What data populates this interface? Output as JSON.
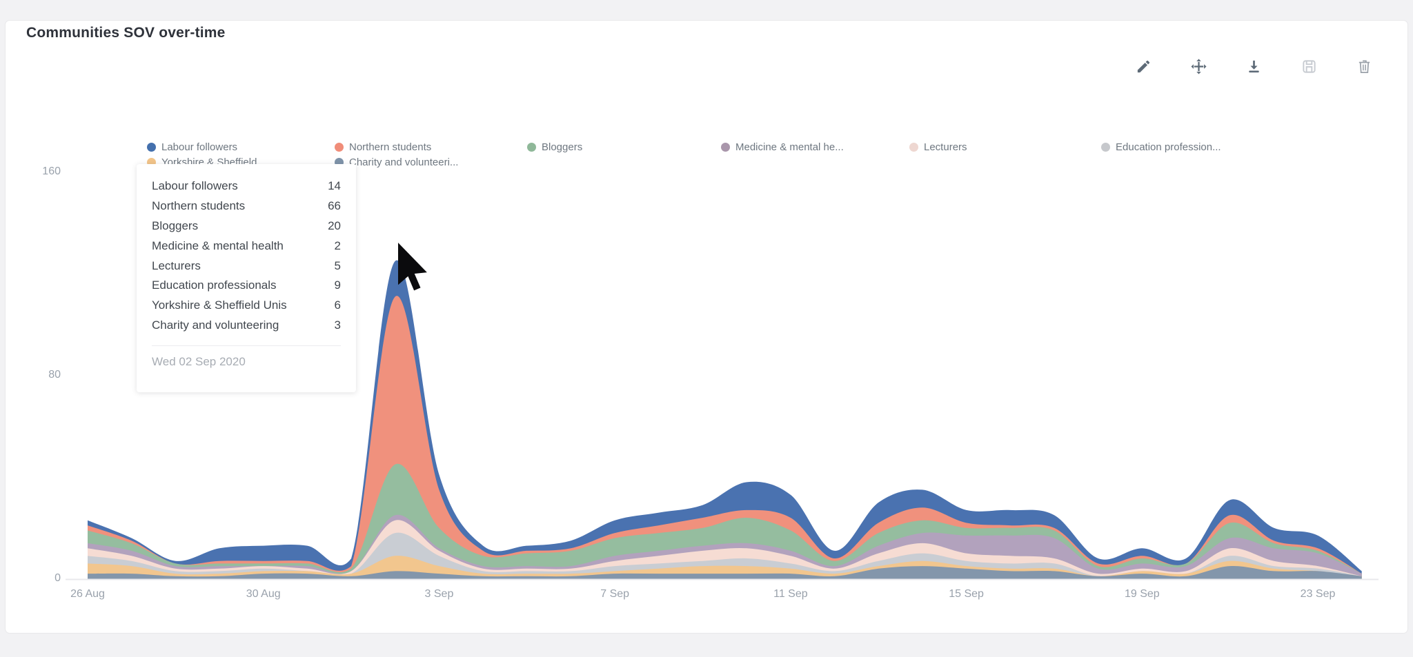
{
  "card": {
    "title": "Communities SOV over-time"
  },
  "toolbar": {
    "buttons": [
      {
        "id": "edit",
        "icon": "pencil-icon"
      },
      {
        "id": "move",
        "icon": "move-icon"
      },
      {
        "id": "download",
        "icon": "download-icon"
      },
      {
        "id": "save",
        "icon": "save-icon"
      },
      {
        "id": "delete",
        "icon": "trash-icon"
      }
    ]
  },
  "legend": {
    "items": [
      {
        "label": "Labour followers",
        "color": "#4470ad"
      },
      {
        "label": "Northern students",
        "color": "#f08d79"
      },
      {
        "label": "Bloggers",
        "color": "#8fb899"
      },
      {
        "label": "Medicine & mental he...",
        "color": "#a996ab"
      },
      {
        "label": "Lecturers",
        "color": "#eed7d1"
      },
      {
        "label": "Education profession...",
        "color": "#c6c8cc"
      },
      {
        "label": "Yorkshire & Sheffield ...",
        "color": "#f2c489"
      },
      {
        "label": "Charity and volunteeri...",
        "color": "#7e93a9"
      }
    ]
  },
  "tooltip": {
    "rows": [
      {
        "label": "Labour followers",
        "value": "14"
      },
      {
        "label": "Northern students",
        "value": "66"
      },
      {
        "label": "Bloggers",
        "value": "20"
      },
      {
        "label": "Medicine & mental health",
        "value": "2"
      },
      {
        "label": "Lecturers",
        "value": "5"
      },
      {
        "label": "Education professionals",
        "value": "9"
      },
      {
        "label": "Yorkshire & Sheffield Unis",
        "value": "6"
      },
      {
        "label": "Charity and volunteering",
        "value": "3"
      }
    ],
    "date": "Wed 02 Sep 2020"
  },
  "axes": {
    "y_ticks": [
      {
        "label": "0",
        "value": 0
      },
      {
        "label": "80",
        "value": 80
      },
      {
        "label": "160",
        "value": 160
      }
    ],
    "x_ticks": [
      {
        "label": "26 Aug",
        "day_index": 0
      },
      {
        "label": "30 Aug",
        "day_index": 4
      },
      {
        "label": "3 Sep",
        "day_index": 8
      },
      {
        "label": "7 Sep",
        "day_index": 12
      },
      {
        "label": "11 Sep",
        "day_index": 16
      },
      {
        "label": "15 Sep",
        "day_index": 20
      },
      {
        "label": "19 Sep",
        "day_index": 24
      },
      {
        "label": "23 Sep",
        "day_index": 28
      }
    ]
  },
  "chart_data": {
    "type": "area",
    "stacked": true,
    "title": "Communities SOV over-time",
    "legend_position": "top",
    "grid": "baseline-only",
    "ylim": [
      0,
      160
    ],
    "y_ticks": [
      0,
      80,
      160
    ],
    "x": [
      "26 Aug",
      "27 Aug",
      "28 Aug",
      "29 Aug",
      "30 Aug",
      "31 Aug",
      "1 Sep",
      "2 Sep",
      "3 Sep",
      "4 Sep",
      "5 Sep",
      "6 Sep",
      "7 Sep",
      "8 Sep",
      "9 Sep",
      "10 Sep",
      "11 Sep",
      "12 Sep",
      "13 Sep",
      "14 Sep",
      "15 Sep",
      "16 Sep",
      "17 Sep",
      "18 Sep",
      "19 Sep",
      "20 Sep",
      "21 Sep",
      "22 Sep",
      "23 Sep",
      "24 Sep"
    ],
    "x_tick_labels": [
      "26 Aug",
      "30 Aug",
      "3 Sep",
      "7 Sep",
      "11 Sep",
      "15 Sep",
      "19 Sep",
      "23 Sep"
    ],
    "highlighted_point": {
      "date": "Wed 02 Sep 2020",
      "total": 125
    },
    "stack_note": "first series renders as topmost band, last series at the bottom",
    "series": [
      {
        "name": "Labour followers",
        "color": "#4a72b0",
        "values": [
          2,
          1,
          1,
          5,
          6,
          6,
          3,
          14,
          6,
          2,
          2,
          3,
          5,
          5,
          5,
          11,
          9,
          3,
          8,
          7,
          5,
          6,
          5,
          2,
          3,
          2,
          6,
          5,
          5,
          1
        ]
      },
      {
        "name": "Northern students",
        "color": "#f0917d",
        "values": [
          2,
          1,
          0,
          1,
          1,
          1,
          1,
          66,
          15,
          2,
          1,
          1,
          2,
          3,
          4,
          3,
          5,
          1,
          4,
          5,
          2,
          1,
          1,
          1,
          1,
          0,
          3,
          1,
          1,
          0
        ]
      },
      {
        "name": "Bloggers",
        "color": "#95bd9f",
        "values": [
          5,
          3,
          1,
          1,
          1,
          1,
          1,
          20,
          8,
          4,
          5,
          6,
          7,
          7,
          7,
          10,
          8,
          2,
          5,
          5,
          3,
          3,
          3,
          1,
          2,
          1,
          6,
          2,
          1,
          0
        ]
      },
      {
        "name": "Medicine & mental health",
        "color": "#b2a2bd",
        "values": [
          2,
          2,
          1,
          1,
          0,
          1,
          0,
          2,
          1,
          1,
          1,
          1,
          2,
          2,
          2,
          2,
          2,
          1,
          3,
          4,
          7,
          8,
          8,
          2,
          2,
          2,
          4,
          5,
          5,
          1
        ]
      },
      {
        "name": "Lecturers",
        "color": "#f6dcd3",
        "values": [
          3,
          2,
          1,
          1,
          1,
          1,
          1,
          5,
          2,
          1,
          1,
          1,
          2,
          3,
          4,
          4,
          3,
          1,
          3,
          4,
          3,
          3,
          2,
          1,
          1,
          1,
          3,
          2,
          1,
          0
        ]
      },
      {
        "name": "Education professionals",
        "color": "#c9cdd3",
        "values": [
          3,
          2,
          1,
          1,
          1,
          0,
          0,
          9,
          4,
          1,
          1,
          1,
          2,
          2,
          2,
          3,
          2,
          1,
          2,
          3,
          2,
          2,
          2,
          0,
          0,
          0,
          2,
          1,
          1,
          0
        ]
      },
      {
        "name": "Yorkshire & Sheffield Unis",
        "color": "#f2c68e",
        "values": [
          4,
          3,
          1,
          1,
          1,
          1,
          1,
          6,
          3,
          1,
          1,
          1,
          1,
          2,
          3,
          3,
          2,
          1,
          1,
          2,
          1,
          1,
          1,
          0,
          1,
          1,
          2,
          1,
          0,
          0
        ]
      },
      {
        "name": "Charity and volunteering",
        "color": "#8396ab",
        "values": [
          2,
          2,
          1,
          1,
          2,
          2,
          1,
          3,
          2,
          1,
          1,
          1,
          2,
          2,
          2,
          2,
          2,
          1,
          4,
          5,
          4,
          3,
          3,
          1,
          2,
          1,
          5,
          3,
          3,
          1
        ]
      }
    ]
  }
}
